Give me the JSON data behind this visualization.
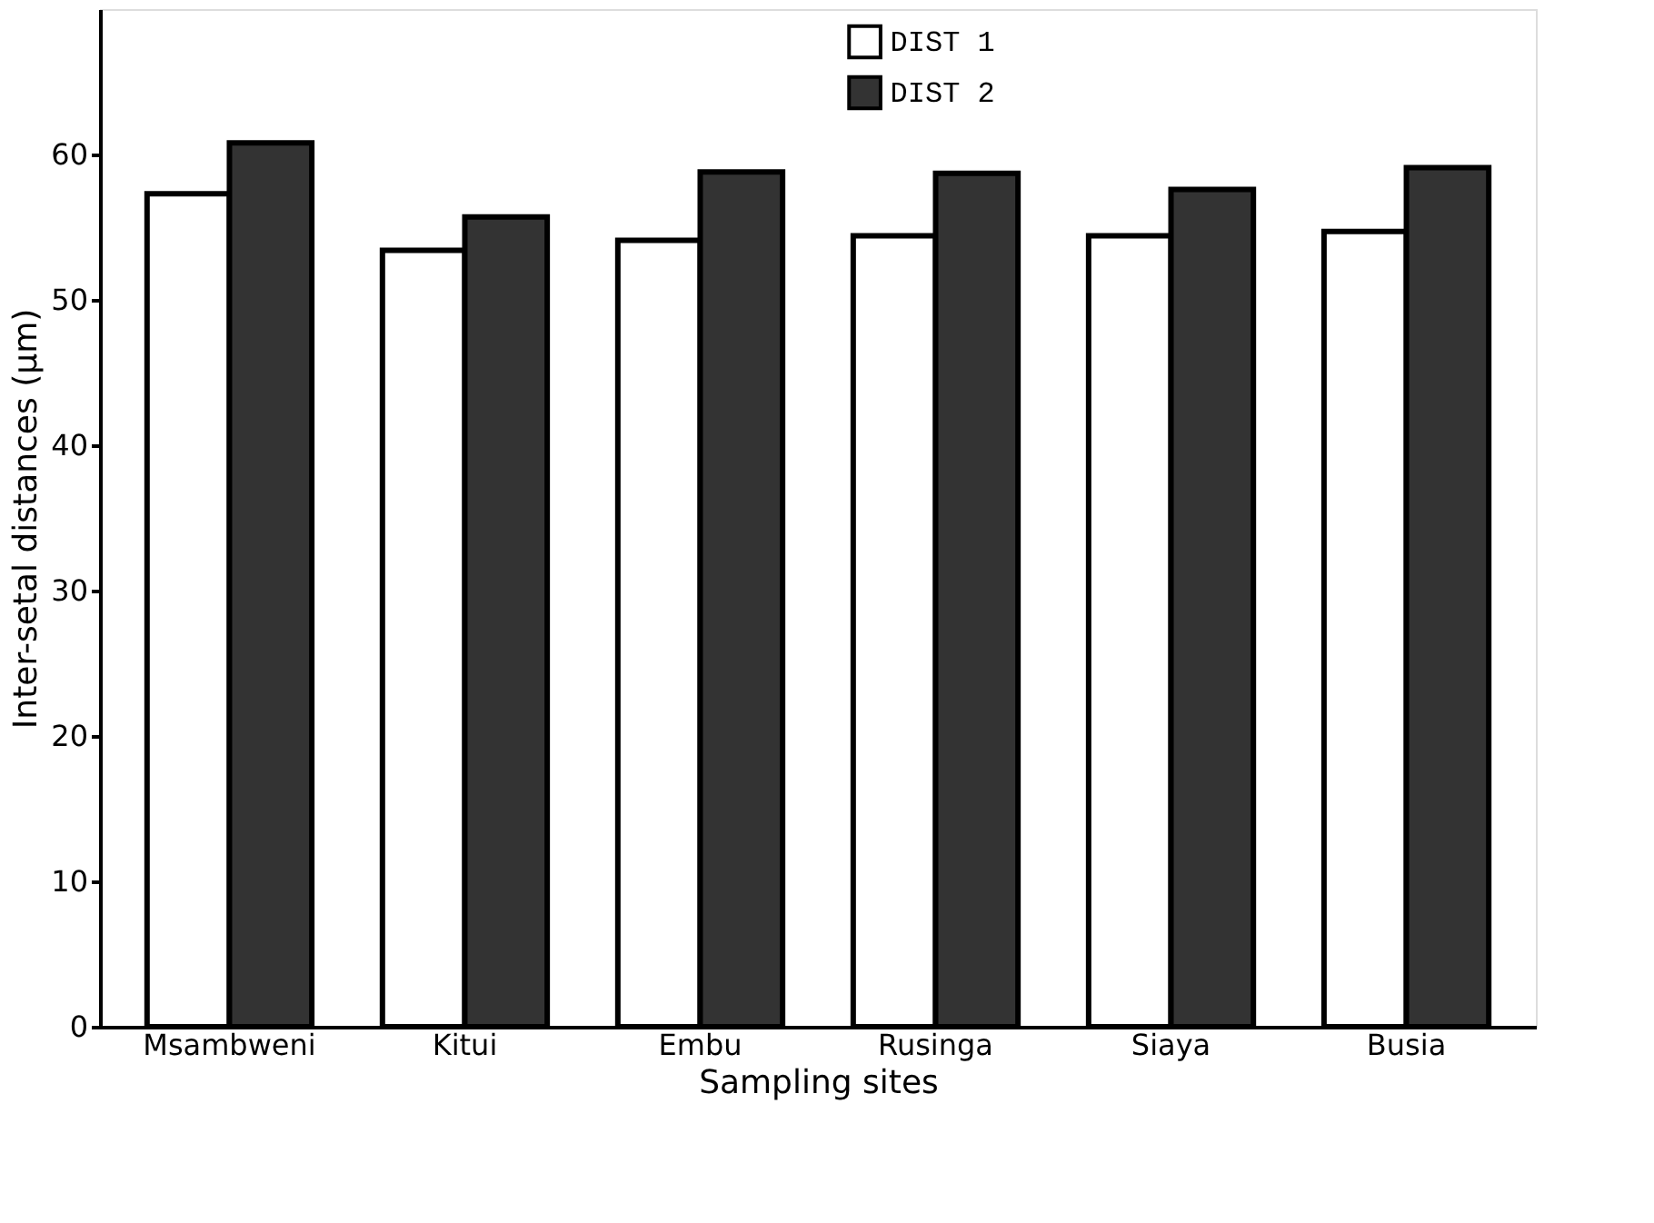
{
  "chart_data": {
    "type": "bar",
    "xlabel": "Sampling sites",
    "ylabel": "Inter-setal distances (µm)",
    "categories": [
      "Msambweni",
      "Kitui",
      "Embu",
      "Rusinga",
      "Siaya",
      "Busia"
    ],
    "series": [
      {
        "name": "DIST 1",
        "color": "#ffffff",
        "values": [
          57.3,
          53.4,
          54.1,
          54.4,
          54.4,
          54.7
        ]
      },
      {
        "name": "DIST 2",
        "color": "#333333",
        "values": [
          60.8,
          55.7,
          58.8,
          58.7,
          57.6,
          59.1
        ]
      }
    ],
    "ylim": [
      0,
      70
    ],
    "yticks": [
      0,
      10,
      20,
      30,
      40,
      50,
      60
    ],
    "grid": false,
    "legend": "top"
  }
}
